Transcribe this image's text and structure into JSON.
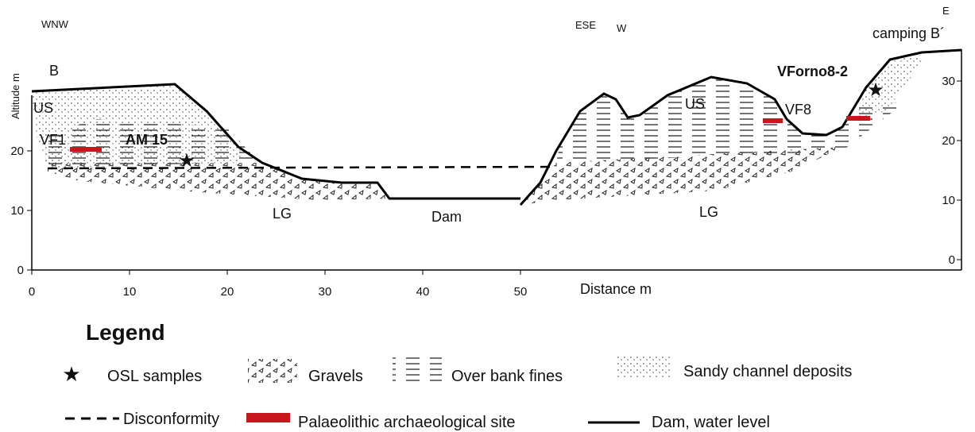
{
  "orientation": {
    "left": "WNW",
    "center_left": "ESE",
    "center_right": "W",
    "right_top": "E",
    "right": "camping B´"
  },
  "axes": {
    "x_label": "Distance m",
    "y_label": "Altitude m",
    "x_ticks": [
      0,
      10,
      20,
      30,
      40,
      50
    ],
    "y_left_ticks": [
      0,
      10,
      20
    ],
    "y_right_ticks": [
      0,
      10,
      20,
      30
    ]
  },
  "section_labels": {
    "b": "B",
    "us_left": "US",
    "vf1": "VF1",
    "am15": "AM 15",
    "lg_left": "LG",
    "dam": "Dam",
    "lg_right": "LG",
    "us_right": "US",
    "vf8": "VF8",
    "vforno": "VForno8-2"
  },
  "legend": {
    "title": "Legend",
    "items": [
      {
        "label": "OSL samples"
      },
      {
        "label": "Gravels"
      },
      {
        "label": "Over bank fines"
      },
      {
        "label": "Sandy channel deposits"
      },
      {
        "label": "Disconformity"
      },
      {
        "label": "Palaeolithic archaeological site"
      },
      {
        "label": "Dam, water level"
      }
    ]
  }
}
